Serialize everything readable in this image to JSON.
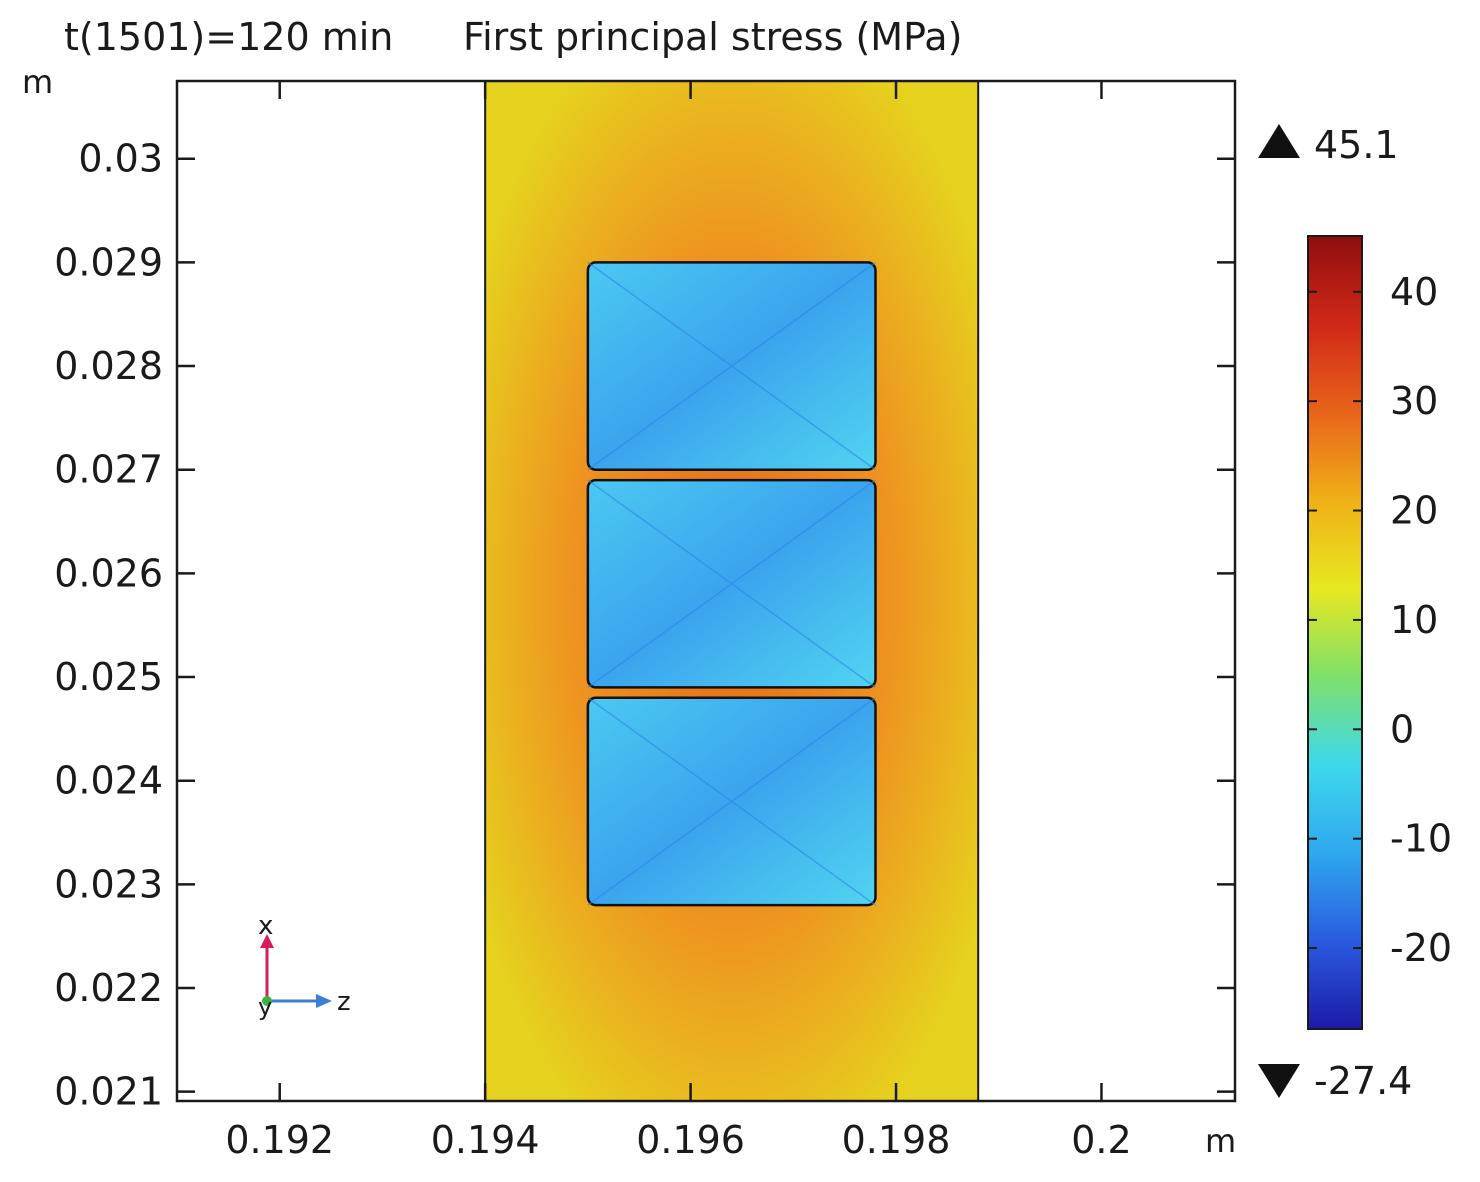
{
  "title": {
    "time_label": "t(1501)=120 min",
    "quantity": "First principal stress (MPa)"
  },
  "axis_units": {
    "y_unit": "m",
    "x_unit": "m"
  },
  "chart_data": {
    "type": "heatmap",
    "title": "t(1501)=120 min  First principal stress (MPa)",
    "xlabel": "m",
    "ylabel": "m",
    "xlim": [
      0.191,
      0.2013
    ],
    "ylim": [
      0.02091,
      0.03075
    ],
    "x_ticks": [
      0.192,
      0.194,
      0.196,
      0.198,
      0.2
    ],
    "x_tick_labels": [
      "0.192",
      "0.194",
      "0.196",
      "0.198",
      "0.2"
    ],
    "y_ticks": [
      0.021,
      0.022,
      0.023,
      0.024,
      0.025,
      0.026,
      0.027,
      0.028,
      0.029,
      0.03
    ],
    "y_tick_labels": [
      "0.021",
      "0.022",
      "0.023",
      "0.024",
      "0.025",
      "0.026",
      "0.027",
      "0.028",
      "0.029",
      "0.03"
    ],
    "domain_x_range": [
      0.194,
      0.1988
    ],
    "inclusions": [
      {
        "x_range": [
          0.195,
          0.1978
        ],
        "y_range": [
          0.027,
          0.029
        ],
        "stress_level": "low"
      },
      {
        "x_range": [
          0.195,
          0.1978
        ],
        "y_range": [
          0.0249,
          0.0269
        ],
        "stress_level": "low"
      },
      {
        "x_range": [
          0.195,
          0.1978
        ],
        "y_range": [
          0.0228,
          0.0248
        ],
        "stress_level": "low"
      }
    ],
    "colorbar": {
      "max": 45.1,
      "min": -27.4,
      "max_label": "45.1",
      "min_label": "-27.4",
      "ticks": [
        40,
        30,
        20,
        10,
        0,
        -10,
        -20
      ],
      "tick_labels": [
        "40",
        "30",
        "20",
        "10",
        "0",
        "-10",
        "-20"
      ],
      "colormap": [
        "#1c1aa6",
        "#2a5be0",
        "#2fa8ee",
        "#3ed8ec",
        "#7fe06a",
        "#e8e820",
        "#f0b018",
        "#e8641a",
        "#d02818",
        "#8e0e0e"
      ]
    },
    "axis_triad": {
      "x_label": "x",
      "y_label": "y",
      "z_label": "z"
    }
  }
}
